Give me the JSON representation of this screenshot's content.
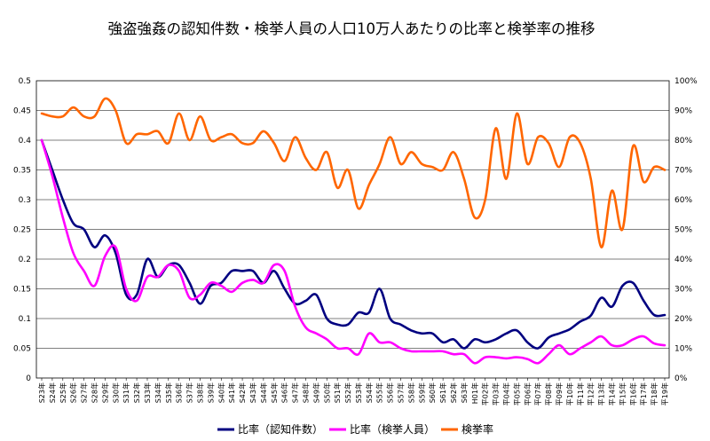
{
  "chart_data": {
    "type": "line",
    "title": "強盗強姦の認知件数・検挙人員の人口10万人あたりの比率と検挙率の推移",
    "categories": [
      "S23年",
      "S24年",
      "S25年",
      "S26年",
      "S27年",
      "S28年",
      "S29年",
      "S30年",
      "S31年",
      "S32年",
      "S33年",
      "S34年",
      "S35年",
      "S36年",
      "S37年",
      "S38年",
      "S39年",
      "S40年",
      "S41年",
      "S42年",
      "S43年",
      "S44年",
      "S45年",
      "S46年",
      "S47年",
      "S48年",
      "S49年",
      "S50年",
      "S51年",
      "S52年",
      "S53年",
      "S54年",
      "S55年",
      "S56年",
      "S57年",
      "S58年",
      "S59年",
      "S60年",
      "S61年",
      "S62年",
      "S63年",
      "H01年",
      "平02年",
      "平03年",
      "平04年",
      "平05年",
      "平06年",
      "平07年",
      "平08年",
      "平09年",
      "平10年",
      "平11年",
      "平12年",
      "平13年",
      "平14年",
      "平15年",
      "平16年",
      "平17年",
      "平18年",
      "平19年"
    ],
    "y_left": {
      "min": 0,
      "max": 0.5,
      "ticks": [
        "0",
        "0.05",
        "0.1",
        "0.15",
        "0.2",
        "0.25",
        "0.3",
        "0.35",
        "0.4",
        "0.45",
        "0.5"
      ]
    },
    "y_right": {
      "min": 0,
      "max": 100,
      "ticks": [
        "0%",
        "10%",
        "20%",
        "30%",
        "40%",
        "50%",
        "60%",
        "70%",
        "80%",
        "90%",
        "100%"
      ]
    },
    "series": [
      {
        "name": "比率（認知件数）",
        "axis": "left",
        "color": "#000080",
        "values": [
          0.4,
          0.35,
          0.3,
          0.26,
          0.25,
          0.22,
          0.24,
          0.21,
          0.14,
          0.14,
          0.2,
          0.17,
          0.19,
          0.19,
          0.16,
          0.125,
          0.155,
          0.16,
          0.18,
          0.18,
          0.18,
          0.16,
          0.18,
          0.15,
          0.125,
          0.13,
          0.14,
          0.1,
          0.09,
          0.09,
          0.11,
          0.11,
          0.15,
          0.1,
          0.09,
          0.08,
          0.075,
          0.075,
          0.06,
          0.065,
          0.05,
          0.065,
          0.06,
          0.065,
          0.075,
          0.08,
          0.06,
          0.05,
          0.068,
          0.075,
          0.082,
          0.095,
          0.105,
          0.135,
          0.12,
          0.155,
          0.16,
          0.13,
          0.106,
          0.106
        ]
      },
      {
        "name": "比率（検挙人員）",
        "axis": "left",
        "color": "#ff00ff",
        "values": [
          0.4,
          0.34,
          0.27,
          0.21,
          0.18,
          0.155,
          0.205,
          0.22,
          0.15,
          0.13,
          0.17,
          0.17,
          0.19,
          0.18,
          0.135,
          0.14,
          0.16,
          0.155,
          0.145,
          0.16,
          0.165,
          0.16,
          0.19,
          0.18,
          0.12,
          0.085,
          0.075,
          0.065,
          0.05,
          0.05,
          0.04,
          0.075,
          0.06,
          0.06,
          0.05,
          0.045,
          0.045,
          0.045,
          0.045,
          0.04,
          0.04,
          0.025,
          0.035,
          0.035,
          0.033,
          0.035,
          0.032,
          0.025,
          0.04,
          0.055,
          0.04,
          0.05,
          0.06,
          0.07,
          0.055,
          0.055,
          0.065,
          0.07,
          0.058,
          0.055
        ]
      },
      {
        "name": "検挙率",
        "axis": "right",
        "color": "#ff6600",
        "values": [
          89,
          88,
          88,
          91,
          88,
          88,
          94,
          90,
          79,
          82,
          82,
          83,
          79,
          89,
          80,
          88,
          80,
          81,
          82,
          79,
          79,
          83,
          79,
          73,
          81,
          74,
          70,
          76,
          64,
          70,
          57,
          65,
          72,
          81,
          72,
          76,
          72,
          71,
          70,
          76,
          67,
          54,
          60,
          84,
          67,
          89,
          72,
          81,
          79,
          71,
          81,
          79,
          67,
          44,
          63,
          50,
          78,
          66,
          71,
          70
        ]
      }
    ],
    "legend": "bottom"
  },
  "legend_items": [
    "比率（認知件数）",
    "比率（検挙人員）",
    "検挙率"
  ]
}
